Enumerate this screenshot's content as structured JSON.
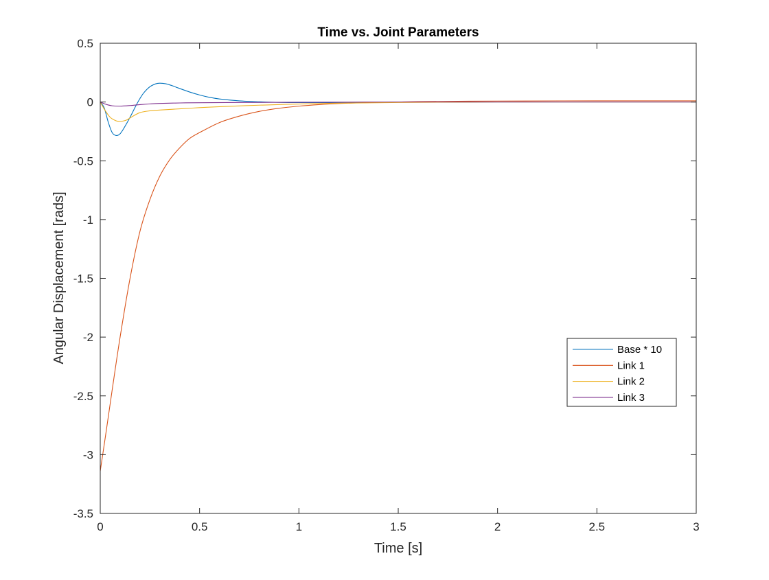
{
  "chart_data": {
    "type": "line",
    "title": "Time vs. Joint Parameters",
    "xlabel": "Time [s]",
    "ylabel": "Angular Displacement [rads]",
    "xlim": [
      0,
      3
    ],
    "ylim": [
      -3.5,
      0.5
    ],
    "xticks": [
      0,
      0.5,
      1,
      1.5,
      2,
      2.5,
      3
    ],
    "xtick_labels": [
      "0",
      "0.5",
      "1",
      "1.5",
      "2",
      "2.5",
      "3"
    ],
    "yticks": [
      0.5,
      0,
      -0.5,
      -1,
      -1.5,
      -2,
      -2.5,
      -3,
      -3.5
    ],
    "ytick_labels": [
      "0.5",
      "0",
      "-0.5",
      "-1",
      "-1.5",
      "-2",
      "-2.5",
      "-3",
      "-3.5"
    ],
    "grid": false,
    "legend_position": "right, lower-middle",
    "series": [
      {
        "name": "Base * 10",
        "color": "#0072BD",
        "x": [
          0,
          0.02,
          0.04,
          0.06,
          0.08,
          0.1,
          0.12,
          0.15,
          0.18,
          0.2,
          0.22,
          0.25,
          0.28,
          0.3,
          0.33,
          0.36,
          0.4,
          0.45,
          0.5,
          0.55,
          0.6,
          0.7,
          0.8,
          0.9,
          1.0,
          1.2,
          1.5,
          2.0,
          2.5,
          3.0
        ],
        "y": [
          0,
          -0.05,
          -0.17,
          -0.26,
          -0.285,
          -0.27,
          -0.22,
          -0.13,
          -0.03,
          0.03,
          0.08,
          0.13,
          0.155,
          0.16,
          0.155,
          0.14,
          0.115,
          0.085,
          0.06,
          0.04,
          0.026,
          0.01,
          0.002,
          -0.003,
          -0.005,
          -0.005,
          -0.002,
          0.0,
          0.0,
          0.0
        ]
      },
      {
        "name": "Link 1",
        "color": "#D95319",
        "x": [
          0,
          0.03,
          0.06,
          0.1,
          0.15,
          0.2,
          0.25,
          0.3,
          0.35,
          0.4,
          0.45,
          0.5,
          0.6,
          0.7,
          0.8,
          0.9,
          1.0,
          1.1,
          1.2,
          1.3,
          1.4,
          1.5,
          1.6,
          1.8,
          2.0,
          2.5,
          3.0
        ],
        "y": [
          -3.14,
          -2.8,
          -2.45,
          -2.0,
          -1.5,
          -1.1,
          -0.83,
          -0.63,
          -0.49,
          -0.39,
          -0.31,
          -0.26,
          -0.175,
          -0.12,
          -0.08,
          -0.053,
          -0.035,
          -0.022,
          -0.013,
          -0.007,
          -0.003,
          0.0,
          0.003,
          0.006,
          0.008,
          0.01,
          0.01
        ]
      },
      {
        "name": "Link 2",
        "color": "#EDB120",
        "x": [
          0,
          0.02,
          0.05,
          0.08,
          0.1,
          0.13,
          0.16,
          0.2,
          0.25,
          0.3,
          0.4,
          0.5,
          0.6,
          0.7,
          0.8,
          1.0,
          1.2,
          1.5,
          2.0,
          2.5,
          3.0
        ],
        "y": [
          0,
          -0.06,
          -0.13,
          -0.16,
          -0.165,
          -0.155,
          -0.125,
          -0.09,
          -0.075,
          -0.068,
          -0.058,
          -0.048,
          -0.04,
          -0.033,
          -0.027,
          -0.017,
          -0.01,
          -0.004,
          0.0,
          0.0,
          0.0
        ]
      },
      {
        "name": "Link 3",
        "color": "#7E2F8E",
        "x": [
          0,
          0.03,
          0.06,
          0.1,
          0.15,
          0.2,
          0.25,
          0.3,
          0.4,
          0.5,
          0.7,
          1.0,
          1.5,
          2.0,
          2.5,
          3.0
        ],
        "y": [
          0,
          -0.02,
          -0.032,
          -0.035,
          -0.03,
          -0.022,
          -0.016,
          -0.012,
          -0.008,
          -0.006,
          -0.004,
          -0.002,
          0.0,
          0.0,
          0.0,
          0.0
        ]
      }
    ]
  }
}
